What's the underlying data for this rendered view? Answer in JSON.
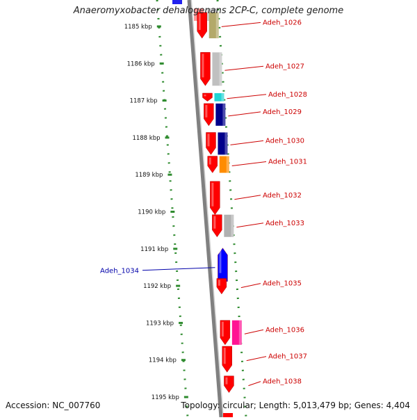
{
  "title": "Anaeromyxobacter dehalogenans 2CP-C, complete genome",
  "footer": {
    "accession": "Accession: NC_007760",
    "topology": "Topology: circular; Length: 5,013,479 bp; Genes: 4,404"
  },
  "scale_unit": "kbp",
  "ticks": [
    1185,
    1186,
    1187,
    1188,
    1189,
    1190,
    1191,
    1192,
    1193,
    1194,
    1195
  ],
  "colors": {
    "backbone": "#808080",
    "ruler": "#2e8b2e",
    "gene_forward": "#ff0000",
    "gene_reverse": "#0000ff",
    "label_forward": "#cc0000",
    "label_reverse": "#0000aa"
  },
  "genes": [
    {
      "kb": 1184.62,
      "len": 0.7,
      "strand": "+",
      "label": "Adeh_1026",
      "cog": "#b3a96a"
    },
    {
      "kb": 1185.7,
      "len": 0.9,
      "strand": "+",
      "label": "Adeh_1027",
      "cog": "#c0c0c0"
    },
    {
      "kb": 1186.8,
      "len": 0.22,
      "strand": "+",
      "label": "Adeh_1028",
      "cog": "#22d4d4"
    },
    {
      "kb": 1187.08,
      "len": 0.6,
      "strand": "+",
      "label": "Adeh_1029",
      "cog": "#00008b"
    },
    {
      "kb": 1187.86,
      "len": 0.6,
      "strand": "+",
      "label": "Adeh_1030",
      "cog": "#00008b"
    },
    {
      "kb": 1188.5,
      "len": 0.45,
      "strand": "+",
      "label": "Adeh_1031",
      "cog": "#ff8c00"
    },
    {
      "kb": 1189.18,
      "len": 0.9,
      "strand": "+",
      "label": "Adeh_1032",
      "cog": null
    },
    {
      "kb": 1190.08,
      "len": 0.6,
      "strand": "+",
      "label": "Adeh_1033",
      "cog": "#b0b0b0"
    },
    {
      "kb": 1190.98,
      "len": 0.9,
      "strand": "-",
      "label": "Adeh_1034",
      "cog": null
    },
    {
      "kb": 1191.8,
      "len": 0.42,
      "strand": "+",
      "label": "Adeh_1035",
      "cog": null
    },
    {
      "kb": 1192.93,
      "len": 0.66,
      "strand": "+",
      "label": "Adeh_1036",
      "cog": "#ff1493"
    },
    {
      "kb": 1193.63,
      "len": 0.7,
      "strand": "+",
      "label": "Adeh_1037",
      "cog": null
    },
    {
      "kb": 1194.43,
      "len": 0.45,
      "strand": "+",
      "label": "Adeh_1038",
      "cog": null
    }
  ]
}
